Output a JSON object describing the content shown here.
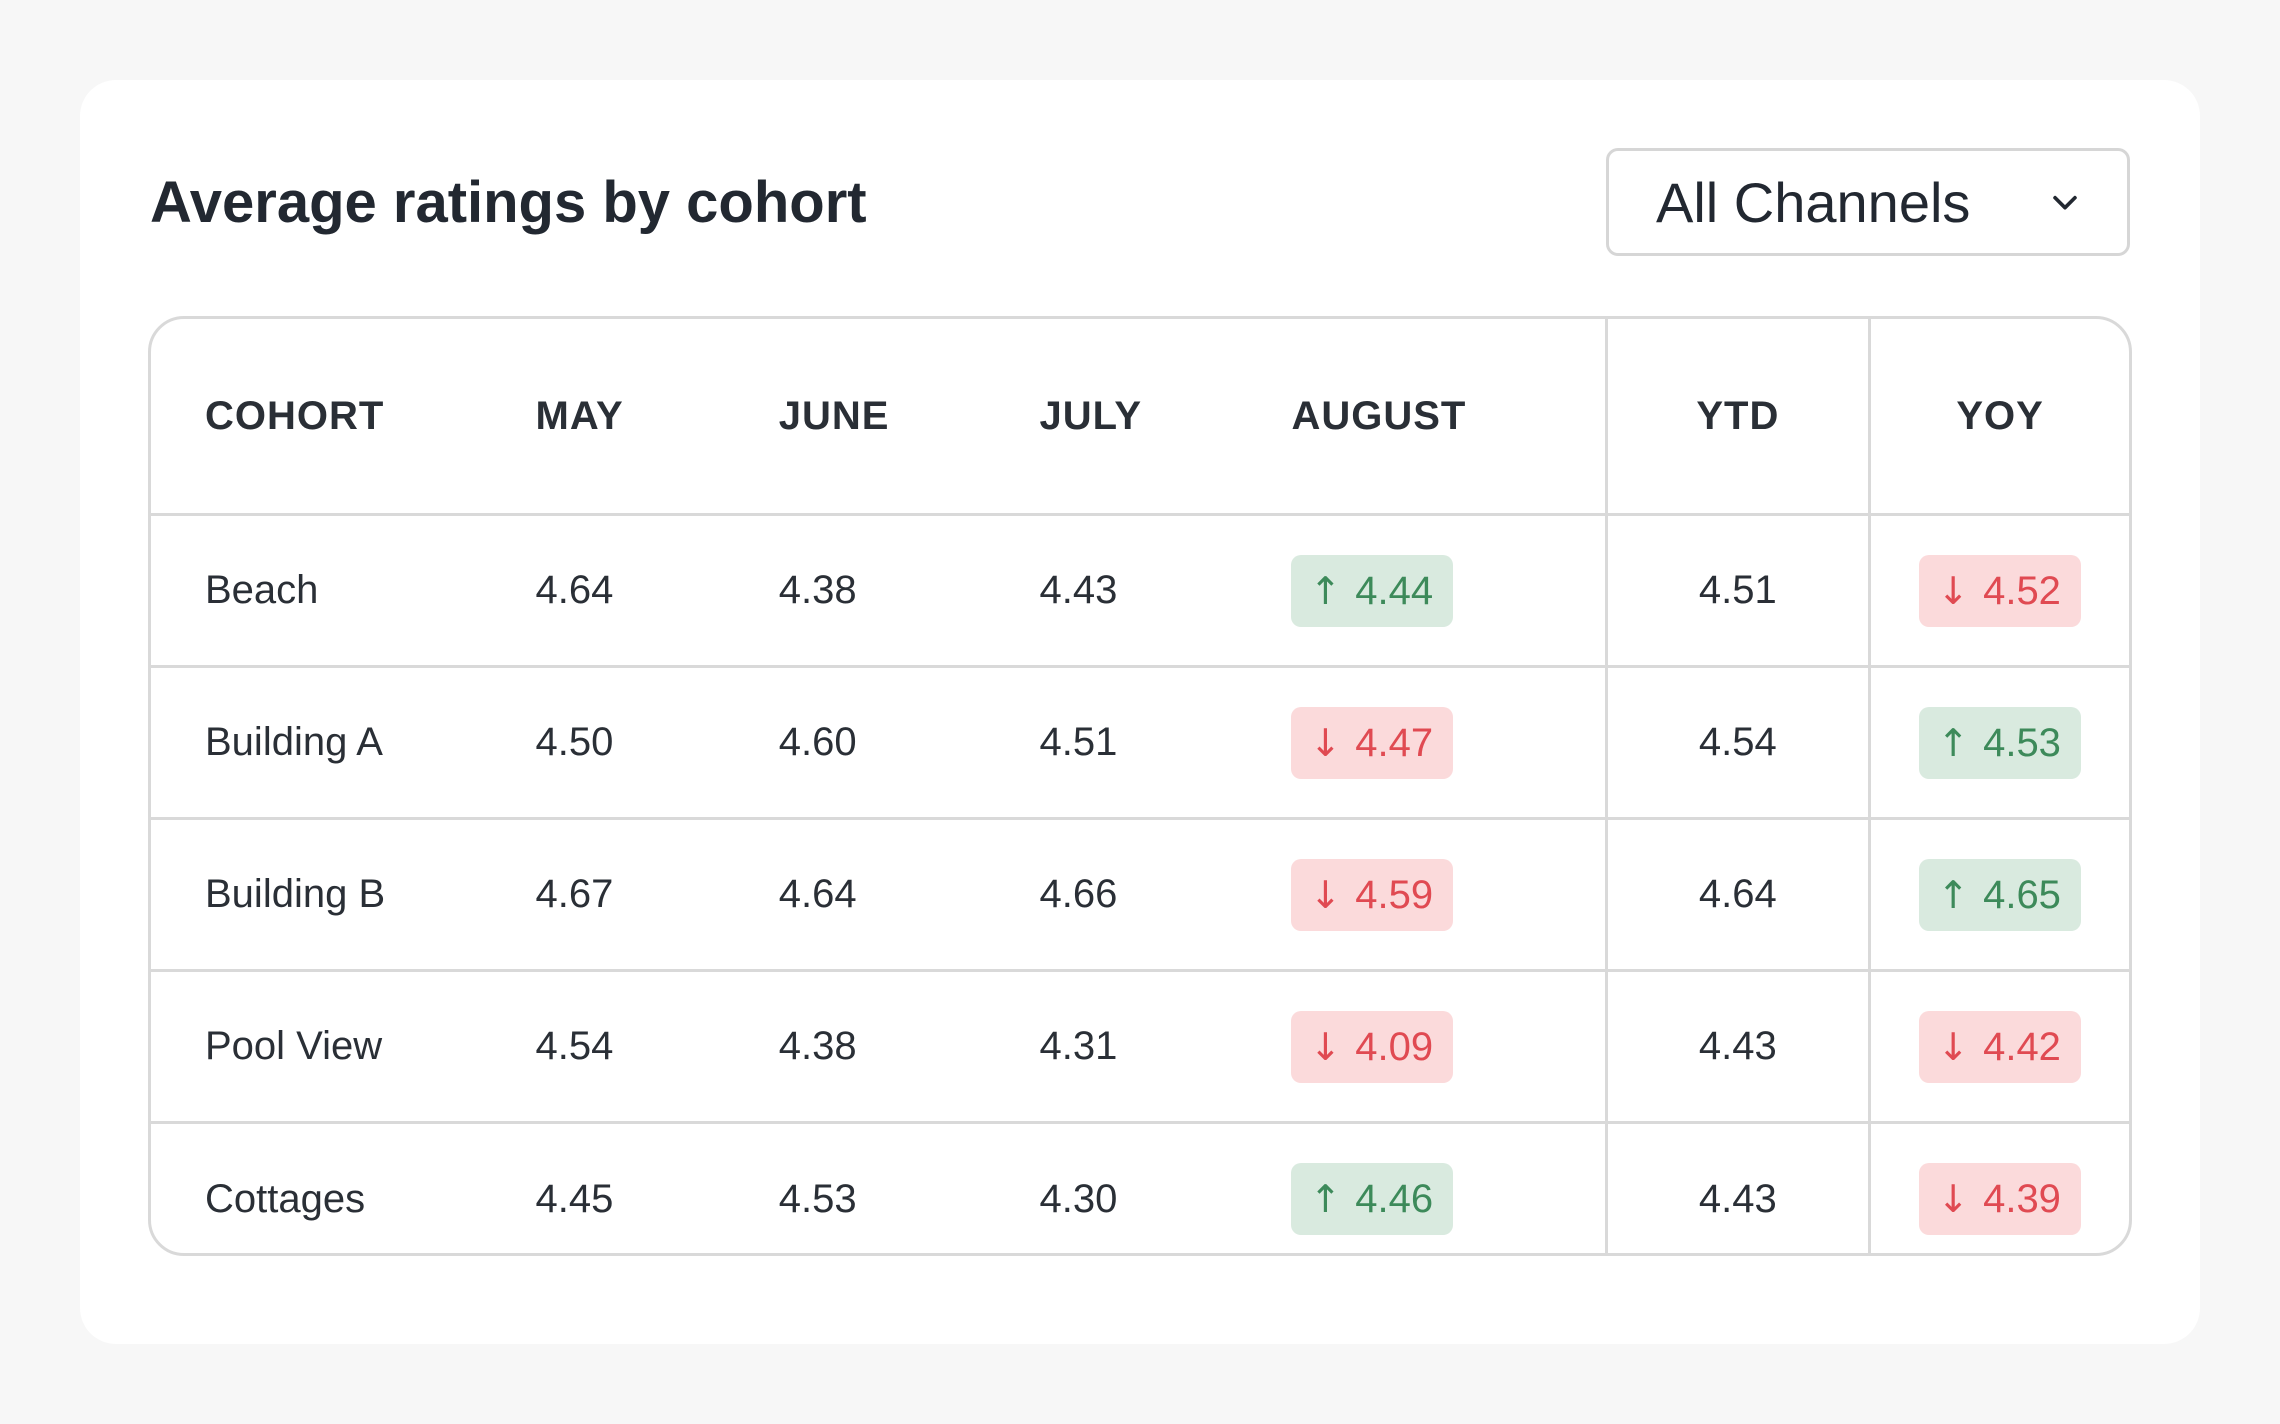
{
  "card": {
    "title": "Average ratings by cohort"
  },
  "filter": {
    "selected": "All Channels",
    "icon": "chevron-down-icon"
  },
  "table": {
    "headers": {
      "cohort": "COHORT",
      "may": "MAY",
      "june": "JUNE",
      "july": "JULY",
      "august": "AUGUST",
      "ytd": "YTD",
      "yoy": "YOY"
    },
    "rows": [
      {
        "cohort": "Beach",
        "may": "4.64",
        "june": "4.38",
        "july": "4.43",
        "august": {
          "value": "4.44",
          "trend": "up",
          "arrow": "↑"
        },
        "ytd": "4.51",
        "yoy": {
          "value": "4.52",
          "trend": "down",
          "arrow": "↓"
        }
      },
      {
        "cohort": "Building A",
        "may": "4.50",
        "june": "4.60",
        "july": "4.51",
        "august": {
          "value": "4.47",
          "trend": "down",
          "arrow": "↓"
        },
        "ytd": "4.54",
        "yoy": {
          "value": "4.53",
          "trend": "up",
          "arrow": "↑"
        }
      },
      {
        "cohort": "Building B",
        "may": "4.67",
        "june": "4.64",
        "july": "4.66",
        "august": {
          "value": "4.59",
          "trend": "down",
          "arrow": "↓"
        },
        "ytd": "4.64",
        "yoy": {
          "value": "4.65",
          "trend": "up",
          "arrow": "↑"
        }
      },
      {
        "cohort": "Pool View",
        "may": "4.54",
        "june": "4.38",
        "july": "4.31",
        "august": {
          "value": "4.09",
          "trend": "down",
          "arrow": "↓"
        },
        "ytd": "4.43",
        "yoy": {
          "value": "4.42",
          "trend": "down",
          "arrow": "↓"
        }
      },
      {
        "cohort": "Cottages",
        "may": "4.45",
        "june": "4.53",
        "july": "4.30",
        "august": {
          "value": "4.46",
          "trend": "up",
          "arrow": "↑"
        },
        "ytd": "4.43",
        "yoy": {
          "value": "4.39",
          "trend": "down",
          "arrow": "↓"
        }
      }
    ]
  },
  "colors": {
    "up_bg": "#d9eadf",
    "up_text": "#3d8a5a",
    "down_bg": "#fbdadb",
    "down_text": "#e04a52"
  }
}
